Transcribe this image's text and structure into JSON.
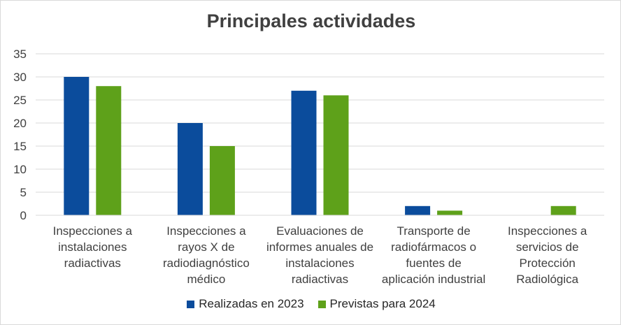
{
  "chart_data": {
    "type": "bar",
    "title": "Principales actividades",
    "categories": [
      [
        "Inspecciones a",
        "instalaciones",
        "radiactivas"
      ],
      [
        "Inspecciones a",
        "rayos X de",
        "radiodiagnóstico",
        "médico"
      ],
      [
        "Evaluaciones de",
        "informes anuales de",
        "instalaciones",
        "radiactivas"
      ],
      [
        "Transporte de",
        "radiofármacos o",
        "fuentes de",
        "aplicación industrial"
      ],
      [
        "Inspecciones a",
        "servicios de",
        "Protección",
        "Radiológica"
      ]
    ],
    "series": [
      {
        "name": "Realizadas en 2023",
        "color": "#0b4c9c",
        "values": [
          30,
          20,
          27,
          2,
          0
        ]
      },
      {
        "name": "Previstas para 2024",
        "color": "#5ea11a",
        "values": [
          28,
          15,
          26,
          1,
          2
        ]
      }
    ],
    "ylim": [
      0,
      35
    ],
    "yticks": [
      0,
      5,
      10,
      15,
      20,
      25,
      30,
      35
    ],
    "grid": true,
    "legend": "bottom"
  }
}
